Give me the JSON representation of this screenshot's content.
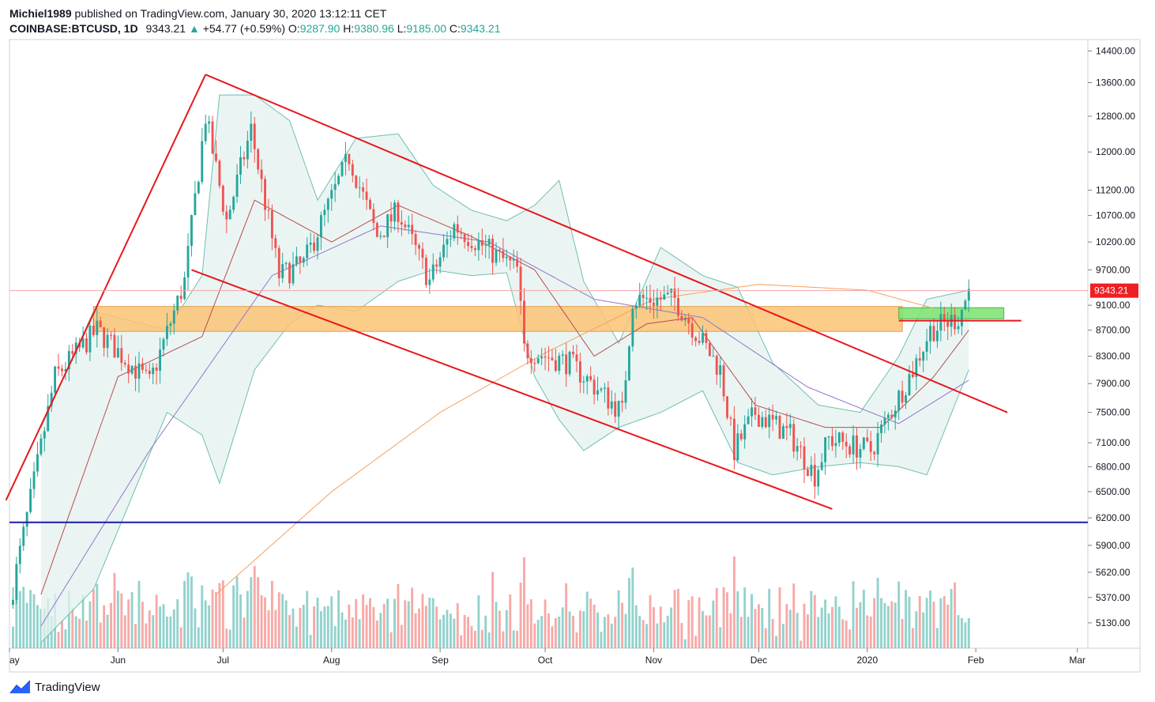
{
  "header": {
    "author": "Michiel1989",
    "published_text": "published on TradingView.com, January 30, 2020 13:12:11 CET",
    "symbol": "COINBASE:BTCUSD, 1D",
    "last": "9343.21",
    "change_arrow": "▲",
    "change": "+54.77 (+0.59%)",
    "o_label": "O:",
    "o_value": "9287.90",
    "h_label": "H:",
    "h_value": "9380.96",
    "l_label": "L:",
    "l_value": "9185.00",
    "c_label": "C:",
    "c_value": "9343.21"
  },
  "footer": {
    "brand": "TradingView",
    "logo_icon": "tradingview-logo-icon"
  },
  "colors": {
    "up": "#26a69a",
    "down": "#ef5350",
    "bollinger_fill": "#e3f2ef",
    "bollinger_line": "#6fbfb0",
    "ma200": "#f7a05a",
    "ma_mid": "#9575cd",
    "ma_fast": "#b84d4d",
    "channel": "#e8161c",
    "support_line": "#1a1aad",
    "zone": "#fbc374",
    "green_zone": "#7be36e",
    "price_tag": "#ef1f23"
  },
  "chart_data": {
    "type": "candlestick",
    "symbol": "COINBASE:BTCUSD",
    "interval": "1D",
    "x_ticks": [
      "ay",
      "Jun",
      "Jul",
      "Aug",
      "Sep",
      "Oct",
      "Nov",
      "Dec",
      "2020",
      "Feb",
      "Mar"
    ],
    "y_ticks": [
      "14400.00",
      "13600.00",
      "12800.00",
      "12000.00",
      "11200.00",
      "10700.00",
      "10200.00",
      "9700.00",
      "9100.00",
      "8700.00",
      "8300.00",
      "7900.00",
      "7500.00",
      "7100.00",
      "6800.00",
      "6500.00",
      "6200.00",
      "5900.00",
      "5620.00",
      "5370.00",
      "5130.00"
    ],
    "y_tick_values": [
      14400,
      13600,
      12800,
      12000,
      11200,
      10700,
      10200,
      9700,
      9100,
      8700,
      8300,
      7900,
      7500,
      7100,
      6800,
      6500,
      6200,
      5900,
      5620,
      5370,
      5130
    ],
    "y_scale": "log",
    "last_price_label": "9343.21",
    "last_price": 9343.21,
    "price_anchors": [
      {
        "date": "2019-05-01",
        "close": 5300
      },
      {
        "date": "2019-05-14",
        "close": 8000
      },
      {
        "date": "2019-05-26",
        "close": 8700
      },
      {
        "date": "2019-06-10",
        "close": 7900
      },
      {
        "date": "2019-06-20",
        "close": 9500
      },
      {
        "date": "2019-06-26",
        "close": 12800
      },
      {
        "date": "2019-07-02",
        "close": 10600
      },
      {
        "date": "2019-07-09",
        "close": 12500
      },
      {
        "date": "2019-07-17",
        "close": 9600
      },
      {
        "date": "2019-07-24",
        "close": 9800
      },
      {
        "date": "2019-08-06",
        "close": 11900
      },
      {
        "date": "2019-08-14",
        "close": 10300
      },
      {
        "date": "2019-08-20",
        "close": 10800
      },
      {
        "date": "2019-08-29",
        "close": 9500
      },
      {
        "date": "2019-09-05",
        "close": 10500
      },
      {
        "date": "2019-09-23",
        "close": 9700
      },
      {
        "date": "2019-09-25",
        "close": 8400
      },
      {
        "date": "2019-10-08",
        "close": 8200
      },
      {
        "date": "2019-10-23",
        "close": 7500
      },
      {
        "date": "2019-10-26",
        "close": 9200
      },
      {
        "date": "2019-11-07",
        "close": 9200
      },
      {
        "date": "2019-11-20",
        "close": 8100
      },
      {
        "date": "2019-11-24",
        "close": 7000
      },
      {
        "date": "2019-11-30",
        "close": 7500
      },
      {
        "date": "2019-12-10",
        "close": 7200
      },
      {
        "date": "2019-12-17",
        "close": 6700
      },
      {
        "date": "2019-12-21",
        "close": 7150
      },
      {
        "date": "2020-01-02",
        "close": 7000
      },
      {
        "date": "2020-01-14",
        "close": 8100
      },
      {
        "date": "2020-01-19",
        "close": 8700
      },
      {
        "date": "2020-01-27",
        "close": 8900
      },
      {
        "date": "2020-01-30",
        "close": 9343.21
      }
    ],
    "bollinger_anchors": [
      {
        "date": "2019-05-10",
        "upper": 7300,
        "lower": 4950
      },
      {
        "date": "2019-05-25",
        "upper": 9000,
        "lower": 5450
      },
      {
        "date": "2019-06-15",
        "upper": 8700,
        "lower": 7500
      },
      {
        "date": "2019-06-25",
        "upper": 9600,
        "lower": 7200
      },
      {
        "date": "2019-06-30",
        "upper": 13300,
        "lower": 6600
      },
      {
        "date": "2019-07-10",
        "upper": 13300,
        "lower": 8100
      },
      {
        "date": "2019-07-20",
        "upper": 12700,
        "lower": 8800
      },
      {
        "date": "2019-07-28",
        "upper": 11000,
        "lower": 9100
      },
      {
        "date": "2019-08-08",
        "upper": 12300,
        "lower": 9000
      },
      {
        "date": "2019-08-20",
        "upper": 12400,
        "lower": 9500
      },
      {
        "date": "2019-08-30",
        "upper": 11300,
        "lower": 9700
      },
      {
        "date": "2019-09-10",
        "upper": 10800,
        "lower": 9600
      },
      {
        "date": "2019-09-20",
        "upper": 10600,
        "lower": 9650
      },
      {
        "date": "2019-09-28",
        "upper": 10900,
        "lower": 8000
      },
      {
        "date": "2019-10-05",
        "upper": 11400,
        "lower": 7400
      },
      {
        "date": "2019-10-12",
        "upper": 9500,
        "lower": 7000
      },
      {
        "date": "2019-10-22",
        "upper": 8500,
        "lower": 7300
      },
      {
        "date": "2019-11-03",
        "upper": 10100,
        "lower": 7500
      },
      {
        "date": "2019-11-15",
        "upper": 9600,
        "lower": 7800
      },
      {
        "date": "2019-11-25",
        "upper": 9400,
        "lower": 6850
      },
      {
        "date": "2019-12-05",
        "upper": 8200,
        "lower": 6700
      },
      {
        "date": "2019-12-18",
        "upper": 7600,
        "lower": 6800
      },
      {
        "date": "2019-12-30",
        "upper": 7500,
        "lower": 6850
      },
      {
        "date": "2020-01-10",
        "upper": 8300,
        "lower": 6800
      },
      {
        "date": "2020-01-18",
        "upper": 9200,
        "lower": 6700
      },
      {
        "date": "2020-01-30",
        "upper": 9350,
        "lower": 8100
      }
    ],
    "ma200_anchors": [
      {
        "date": "2019-06-29",
        "value": 5400
      },
      {
        "date": "2019-08-01",
        "value": 6500
      },
      {
        "date": "2019-09-01",
        "value": 7500
      },
      {
        "date": "2019-10-01",
        "value": 8350
      },
      {
        "date": "2019-11-01",
        "value": 9200
      },
      {
        "date": "2019-12-01",
        "value": 9450
      },
      {
        "date": "2020-01-01",
        "value": 9350
      },
      {
        "date": "2020-01-20",
        "value": 9050
      }
    ],
    "ma_mid_anchors": [
      {
        "date": "2019-05-10",
        "value": 5100
      },
      {
        "date": "2019-06-10",
        "value": 7000
      },
      {
        "date": "2019-07-15",
        "value": 9600
      },
      {
        "date": "2019-08-15",
        "value": 10500
      },
      {
        "date": "2019-09-15",
        "value": 10200
      },
      {
        "date": "2019-10-15",
        "value": 9200
      },
      {
        "date": "2019-11-15",
        "value": 8900
      },
      {
        "date": "2019-12-15",
        "value": 7850
      },
      {
        "date": "2020-01-10",
        "value": 7350
      },
      {
        "date": "2020-01-30",
        "value": 7950
      }
    ],
    "ma_fast_anchors": [
      {
        "date": "2019-05-10",
        "value": 5400
      },
      {
        "date": "2019-06-01",
        "value": 8000
      },
      {
        "date": "2019-06-25",
        "value": 8600
      },
      {
        "date": "2019-07-10",
        "value": 11000
      },
      {
        "date": "2019-08-01",
        "value": 10200
      },
      {
        "date": "2019-08-20",
        "value": 10900
      },
      {
        "date": "2019-09-10",
        "value": 10300
      },
      {
        "date": "2019-09-28",
        "value": 9700
      },
      {
        "date": "2019-10-15",
        "value": 8300
      },
      {
        "date": "2019-10-30",
        "value": 8800
      },
      {
        "date": "2019-11-12",
        "value": 8900
      },
      {
        "date": "2019-11-30",
        "value": 7600
      },
      {
        "date": "2019-12-20",
        "value": 7300
      },
      {
        "date": "2020-01-05",
        "value": 7300
      },
      {
        "date": "2020-01-20",
        "value": 8000
      },
      {
        "date": "2020-01-30",
        "value": 8700
      }
    ],
    "drawings": {
      "channel_top": [
        {
          "date": "2019-06-26",
          "price": 13800
        },
        {
          "date": "2020-02-10",
          "price": 7500
        }
      ],
      "channel_bottom": [
        {
          "date": "2019-06-22",
          "price": 9700
        },
        {
          "date": "2019-12-22",
          "price": 6300
        }
      ],
      "impulse_line": [
        {
          "date": "2019-04-30",
          "price": 6400
        },
        {
          "date": "2019-06-26",
          "price": 13800
        }
      ],
      "support_line": 6150,
      "resistance_line": [
        {
          "date": "2020-01-10",
          "price": 8850
        },
        {
          "date": "2020-02-14",
          "price": 8850
        }
      ],
      "zone": {
        "from_date": "2019-05-25",
        "to_date": "2020-01-11",
        "top": 9080,
        "bottom": 8680
      },
      "green_zone": {
        "from_date": "2020-01-10",
        "to_date": "2020-02-09",
        "top": 9060,
        "bottom": 8880
      }
    }
  }
}
